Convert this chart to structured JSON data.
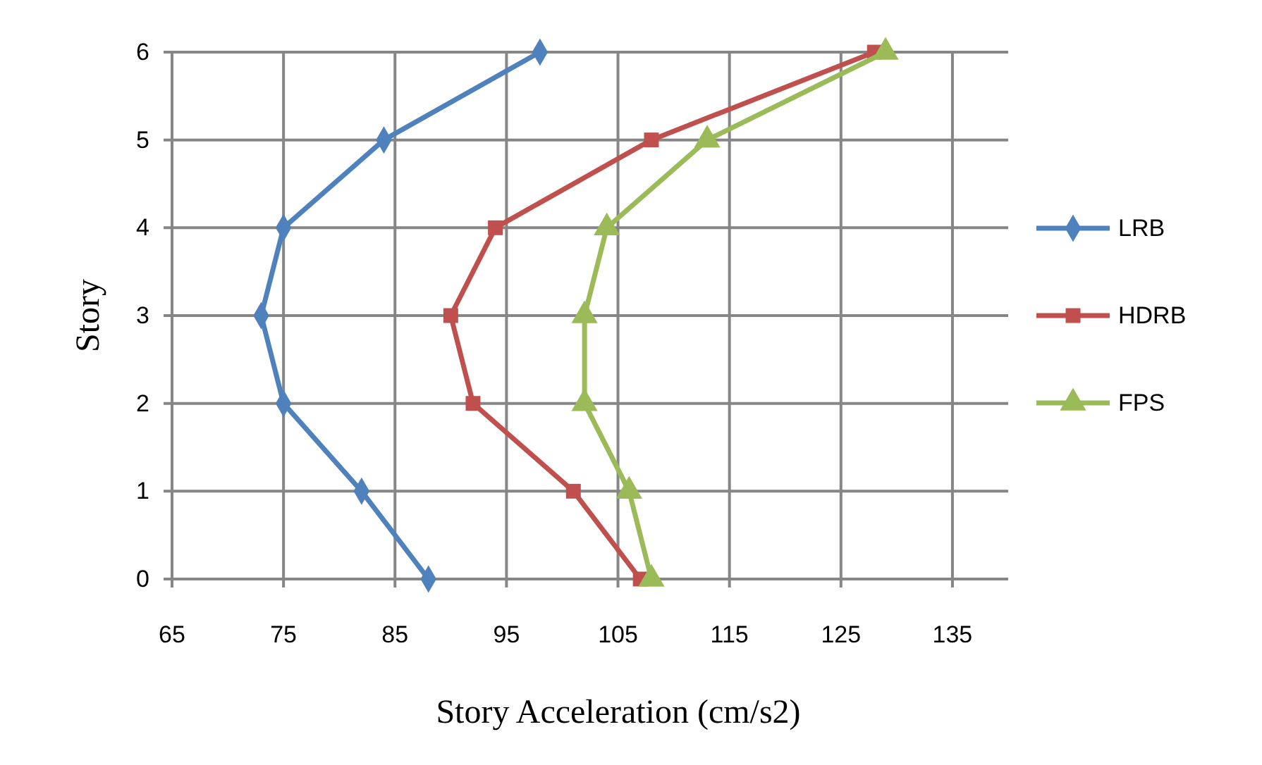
{
  "chart_data": {
    "type": "line",
    "xlabel": "Story Acceleration (cm/s2)",
    "ylabel": "Story",
    "xlim": [
      65,
      140
    ],
    "xticks": [
      65,
      75,
      85,
      95,
      105,
      115,
      125,
      135
    ],
    "ylim": [
      0,
      6
    ],
    "yticks": [
      0,
      1,
      2,
      3,
      4,
      5,
      6
    ],
    "grid": true,
    "legend": "right",
    "series": [
      {
        "name": "LRB",
        "color": "#4f81bd",
        "marker": "diamond",
        "x": [
          88,
          82,
          75,
          73,
          75,
          84,
          98
        ],
        "values": [
          0,
          1,
          2,
          3,
          4,
          5,
          6
        ]
      },
      {
        "name": "HDRB",
        "color": "#c0504d",
        "marker": "square",
        "x": [
          107,
          101,
          92,
          90,
          94,
          108,
          128
        ],
        "values": [
          0,
          1,
          2,
          3,
          4,
          5,
          6
        ]
      },
      {
        "name": "FPS",
        "color": "#9bbb59",
        "marker": "triangle",
        "x": [
          108,
          106,
          102,
          102,
          104,
          113,
          129
        ],
        "values": [
          0,
          1,
          2,
          3,
          4,
          5,
          6
        ]
      }
    ]
  }
}
